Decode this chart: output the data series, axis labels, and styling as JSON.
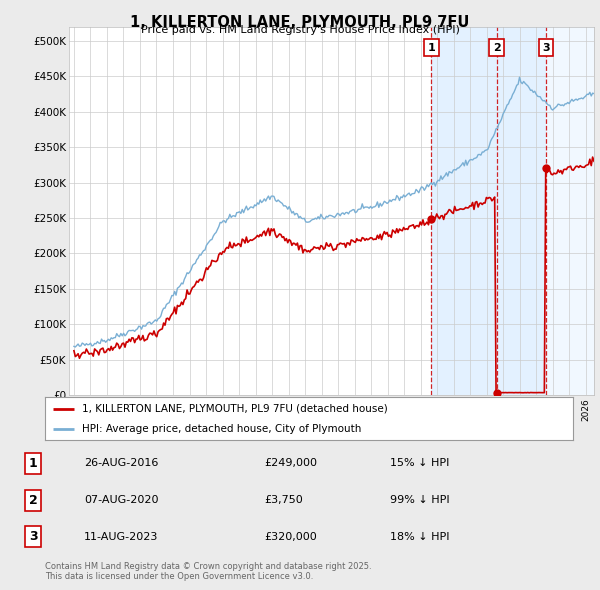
{
  "title": "1, KILLERTON LANE, PLYMOUTH, PL9 7FU",
  "subtitle": "Price paid vs. HM Land Registry's House Price Index (HPI)",
  "property_label": "1, KILLERTON LANE, PLYMOUTH, PL9 7FU (detached house)",
  "hpi_label": "HPI: Average price, detached house, City of Plymouth",
  "footer": "Contains HM Land Registry data © Crown copyright and database right 2025.\nThis data is licensed under the Open Government Licence v3.0.",
  "transactions": [
    {
      "num": 1,
      "date": "26-AUG-2016",
      "price": "£249,000",
      "hpi_diff": "15% ↓ HPI",
      "x_year": 2016.65
    },
    {
      "num": 2,
      "date": "07-AUG-2020",
      "price": "£3,750",
      "hpi_diff": "99% ↓ HPI",
      "x_year": 2020.6
    },
    {
      "num": 3,
      "date": "11-AUG-2023",
      "price": "£320,000",
      "hpi_diff": "18% ↓ HPI",
      "x_year": 2023.6
    }
  ],
  "vline_years": [
    2016.65,
    2020.6,
    2023.6
  ],
  "ylim": [
    0,
    520000
  ],
  "yticks": [
    0,
    50000,
    100000,
    150000,
    200000,
    250000,
    300000,
    350000,
    400000,
    450000,
    500000
  ],
  "ytick_labels": [
    "£0",
    "£50K",
    "£100K",
    "£150K",
    "£200K",
    "£250K",
    "£300K",
    "£350K",
    "£400K",
    "£450K",
    "£500K"
  ],
  "property_color": "#cc0000",
  "hpi_color": "#7aafd4",
  "shade_color": "#ddeeff",
  "background_color": "#ebebeb",
  "plot_bg_color": "#ffffff",
  "grid_color": "#cccccc",
  "xmin": 1994.7,
  "xmax": 2026.5
}
